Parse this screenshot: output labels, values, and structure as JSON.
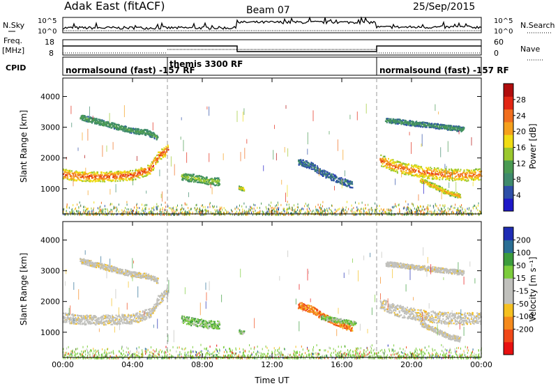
{
  "header": {
    "station": "Adak East (fitACF)",
    "beam": "Beam 07",
    "date": "25/Sep/2015"
  },
  "left_labels": {
    "nsky": "N.Sky",
    "freq": "Freq.",
    "freq_unit": "[MHz]",
    "cpid": "CPID"
  },
  "right_labels": {
    "nsearch": "N.Search",
    "nave": "Nave"
  },
  "noise_axis": {
    "left_ticks": [
      "10^5",
      "10^0"
    ],
    "right_ticks": [
      "10^5",
      "10^0"
    ]
  },
  "freq_axis": {
    "left_ticks": [
      "18",
      "8"
    ],
    "right_ticks": [
      "60",
      "0"
    ]
  },
  "cpid_segments": [
    {
      "label": "normalsound (fast) -157 RF",
      "start_h": 0,
      "end_h": 6
    },
    {
      "label": "themis 3300 RF",
      "start_h": 6,
      "end_h": 18
    },
    {
      "label": "normalsound (fast) -157 RF",
      "start_h": 18,
      "end_h": 24
    }
  ],
  "chart_data": [
    {
      "type": "heatmap",
      "xlabel": "",
      "ylabel": "Slant Range [km]",
      "xlim": [
        0,
        24
      ],
      "ylim": [
        180,
        4600
      ],
      "y_ticks": [
        1000,
        2000,
        3000,
        4000
      ],
      "x_ticks": [
        0,
        4,
        8,
        12,
        16,
        20,
        24
      ],
      "colorbar": {
        "label": "Power [dB]",
        "range": [
          0,
          32
        ],
        "ticks": [
          "4",
          "8",
          "12",
          "16",
          "20",
          "24",
          "28"
        ]
      },
      "colors": [
        "#1e18c8",
        "#2e4fa8",
        "#3f8a6c",
        "#4a9a52",
        "#9bc82e",
        "#f0dc14",
        "#f5a01c",
        "#f06e1e",
        "#e22614",
        "#b00c0c"
      ],
      "regions": [
        {
          "name": "band",
          "x": [
            0.0,
            1.0,
            2.0,
            3.0,
            4.0,
            5.0,
            5.5,
            6.0
          ],
          "y": [
            1500,
            1420,
            1410,
            1430,
            1460,
            1650,
            2100,
            2300
          ],
          "width": 320,
          "level": 0.85
        },
        {
          "name": "upper",
          "x": [
            1.0,
            2.0,
            3.0,
            4.0,
            4.8,
            5.4
          ],
          "y": [
            3350,
            3200,
            3050,
            2900,
            2850,
            2700
          ],
          "width": 180,
          "level": 0.35
        },
        {
          "name": "blob",
          "x": [
            6.8,
            7.5,
            8.2,
            9.0
          ],
          "y": [
            1420,
            1360,
            1280,
            1250
          ],
          "width": 260,
          "level": 0.45
        },
        {
          "name": "blob2",
          "x": [
            10.1,
            10.4
          ],
          "y": [
            1050,
            1000
          ],
          "width": 120,
          "level": 0.6
        },
        {
          "name": "mid",
          "x": [
            13.5,
            14.3,
            15.0,
            15.8,
            16.6
          ],
          "y": [
            1900,
            1750,
            1500,
            1300,
            1150
          ],
          "width": 220,
          "level": 0.2
        },
        {
          "name": "evening",
          "x": [
            18.2,
            19.0,
            20.0,
            21.0,
            22.0,
            23.0,
            24.0
          ],
          "y": [
            1950,
            1750,
            1620,
            1530,
            1480,
            1460,
            1480
          ],
          "width": 380,
          "level": 0.8
        },
        {
          "name": "evening-low",
          "x": [
            20.5,
            21.3,
            22.0,
            22.8
          ],
          "y": [
            1300,
            1100,
            900,
            780
          ],
          "width": 160,
          "level": 0.7
        },
        {
          "name": "evening-up",
          "x": [
            18.5,
            20.0,
            21.5,
            23.0
          ],
          "y": [
            3250,
            3150,
            3050,
            2950
          ],
          "width": 160,
          "level": 0.3
        }
      ]
    },
    {
      "type": "heatmap",
      "xlabel": "Time UT",
      "ylabel": "Slant Range [km]",
      "xlim": [
        0,
        24
      ],
      "ylim": [
        180,
        4600
      ],
      "y_ticks": [
        1000,
        2000,
        3000,
        4000
      ],
      "x_ticks": [
        0,
        4,
        8,
        12,
        16,
        20,
        24
      ],
      "x_tick_labels": [
        "00:00",
        "04:00",
        "08:00",
        "12:00",
        "16:00",
        "20:00",
        "00:00"
      ],
      "colorbar": {
        "label": "Velocity [m s⁻¹]",
        "range": [
          -250,
          250
        ],
        "ticks": [
          "200",
          "100",
          "50",
          "15",
          "-15",
          "-50",
          "-100",
          "-200"
        ]
      },
      "colors": [
        "#e81010",
        "#f04818",
        "#f58a1c",
        "#f5c020",
        "#c0c0bc",
        "#c0c0bc",
        "#7ccc3c",
        "#3c9c3c",
        "#2a6e94",
        "#1e2cb4"
      ],
      "regions": [
        {
          "name": "band",
          "x": [
            0.0,
            1.0,
            2.0,
            3.0,
            4.0,
            5.0,
            5.5,
            6.0
          ],
          "y": [
            1500,
            1420,
            1410,
            1430,
            1460,
            1650,
            2100,
            2300
          ],
          "width": 320,
          "level": 0.48
        },
        {
          "name": "upper",
          "x": [
            1.0,
            2.0,
            3.0,
            4.0,
            4.8,
            5.4
          ],
          "y": [
            3350,
            3200,
            3050,
            2900,
            2850,
            2700
          ],
          "width": 180,
          "level": 0.48
        },
        {
          "name": "blob",
          "x": [
            6.8,
            7.5,
            8.2,
            9.0
          ],
          "y": [
            1420,
            1360,
            1280,
            1250
          ],
          "width": 260,
          "level": 0.68
        },
        {
          "name": "blob2",
          "x": [
            10.1,
            10.4
          ],
          "y": [
            1050,
            1000
          ],
          "width": 120,
          "level": 0.68
        },
        {
          "name": "mid",
          "x": [
            13.5,
            14.3,
            15.0,
            15.8,
            16.6
          ],
          "y": [
            1900,
            1750,
            1500,
            1300,
            1150
          ],
          "width": 220,
          "level": 0.2
        },
        {
          "name": "mid-green",
          "x": [
            14.8,
            15.8,
            16.8
          ],
          "y": [
            1500,
            1400,
            1300
          ],
          "width": 140,
          "level": 0.65
        },
        {
          "name": "evening",
          "x": [
            18.2,
            19.0,
            20.0,
            21.0,
            22.0,
            23.0,
            24.0
          ],
          "y": [
            1950,
            1750,
            1620,
            1530,
            1480,
            1460,
            1480
          ],
          "width": 380,
          "level": 0.48
        },
        {
          "name": "evening-low",
          "x": [
            20.5,
            21.3,
            22.0,
            22.8
          ],
          "y": [
            1300,
            1100,
            900,
            780
          ],
          "width": 160,
          "level": 0.48
        },
        {
          "name": "evening-up",
          "x": [
            18.5,
            20.0,
            21.5,
            23.0
          ],
          "y": [
            3250,
            3150,
            3050,
            2950
          ],
          "width": 160,
          "level": 0.48
        }
      ]
    }
  ]
}
